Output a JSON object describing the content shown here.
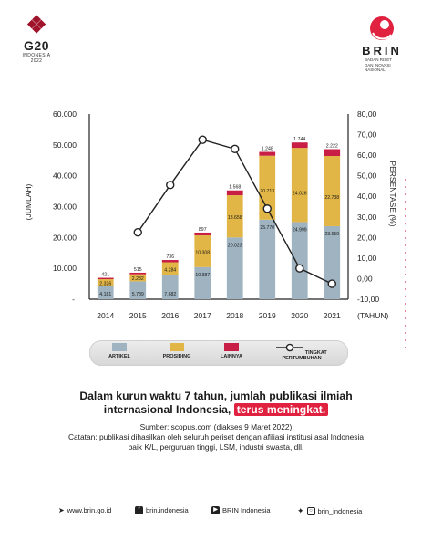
{
  "logos": {
    "g20": {
      "mark": "G20",
      "line1": "INDONESIA",
      "line2": "2022"
    },
    "brin": {
      "name": "BRIN",
      "sub1": "BADAN RISET",
      "sub2": "DAN INOVASI NASIONAL"
    }
  },
  "chart_data": {
    "type": "bar",
    "stacked": true,
    "categories": [
      "2014",
      "2015",
      "2016",
      "2017",
      "2018",
      "2019",
      "2020",
      "2021"
    ],
    "series": [
      {
        "name": "ARTIKEL",
        "color": "#9fb3c0",
        "values": [
          4181,
          5789,
          7682,
          10387,
          20023,
          25770,
          24999,
          23659
        ],
        "labels": [
          "4.181",
          "5.789",
          "7.682",
          "10.387",
          "20.023",
          "25.770",
          "24.999",
          "23.659"
        ]
      },
      {
        "name": "PROSIDING",
        "color": "#e2b646",
        "values": [
          2326,
          2282,
          4284,
          10308,
          13658,
          20713,
          24026,
          22738
        ],
        "labels": [
          "2.326",
          "2.282",
          "4.284",
          "10.308",
          "13.658",
          "20.713",
          "24.026",
          "22.738"
        ]
      },
      {
        "name": "LAINNYA",
        "color": "#c81e45",
        "values": [
          421,
          515,
          736,
          897,
          1568,
          1248,
          1744,
          2222
        ],
        "labels": [
          "421",
          "515",
          "736",
          "897",
          "1.568",
          "1.248",
          "1.744",
          "2.222"
        ]
      }
    ],
    "line": {
      "name": "TINGKAT PERTUMBUHAN",
      "values": [
        null,
        22.5,
        45.5,
        67.5,
        63,
        34,
        5,
        -2.5
      ]
    },
    "ylabel": "(JUMLAH)",
    "y2label": "PERSENTASE (%)",
    "xlabel": "(TAHUN)",
    "ylim": [
      0,
      60000
    ],
    "y2lim": [
      -10,
      80
    ],
    "yticks": [
      "10.000",
      "20.000",
      "30.000",
      "40.000",
      "50.000",
      "60.000"
    ],
    "y2ticks": [
      "-10,00",
      "0,00",
      "10,00",
      "20,00",
      "30,00",
      "40,00",
      "50,00",
      "60,00",
      "70,00",
      "80,00"
    ],
    "legend_position": "bottom"
  },
  "text": {
    "headline1": "Dalam kurun waktu 7 tahun, jumlah publikasi ilmiah",
    "headline2": "internasional Indonesia,",
    "highlight": "terus meningkat.",
    "source": "Sumber: scopus.com (diakses 9 Maret 2022)",
    "notes": "Catatan: publikasi dihasilkan oleh seluruh periset dengan afiliasi institusi asal Indonesia baik K/L, perguruan tinggi, LSM, industri swasta, dll."
  },
  "footer": {
    "web": "www.brin.go.id",
    "facebook": "brin.indonesia",
    "youtube": "BRIN Indonesia",
    "social": "brin_indonesia"
  }
}
